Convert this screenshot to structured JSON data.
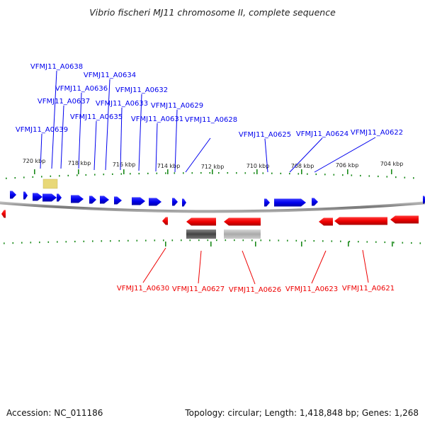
{
  "title": "Vibrio fischeri MJ11 chromosome II, complete sequence",
  "footer": {
    "accession": "Accession: NC_011186",
    "summary": "Topology: circular; Length: 1,418,848 bp; Genes: 1,268"
  },
  "colors": {
    "forward": "#0000ee",
    "reverse": "#ee0000",
    "backbone": "#8a8a8a",
    "tick": "#1a8a1a",
    "highlight": "#e8d878"
  },
  "scale": {
    "ticks": [
      {
        "label": "720 kbp",
        "kbp": 720
      },
      {
        "label": "718 kbp",
        "kbp": 718
      },
      {
        "label": "716 kbp",
        "kbp": 716
      },
      {
        "label": "714 kbp",
        "kbp": 714
      },
      {
        "label": "712 kbp",
        "kbp": 712
      },
      {
        "label": "710 kbp",
        "kbp": 710
      },
      {
        "label": "708 kbp",
        "kbp": 708
      },
      {
        "label": "706 kbp",
        "kbp": 706
      },
      {
        "label": "704 kbp",
        "kbp": 704
      }
    ]
  },
  "genes_forward": [
    {
      "locus": "VFMJ11_A0638"
    },
    {
      "locus": "VFMJ11_A0634"
    },
    {
      "locus": "VFMJ11_A0636"
    },
    {
      "locus": "VFMJ11_A0632"
    },
    {
      "locus": "VFMJ11_A0637"
    },
    {
      "locus": "VFMJ11_A0633"
    },
    {
      "locus": "VFMJ11_A0629"
    },
    {
      "locus": "VFMJ11_A0635"
    },
    {
      "locus": "VFMJ11_A0631"
    },
    {
      "locus": "VFMJ11_A0628"
    },
    {
      "locus": "VFMJ11_A0639"
    },
    {
      "locus": "VFMJ11_A0625"
    },
    {
      "locus": "VFMJ11_A0624"
    },
    {
      "locus": "VFMJ11_A0622"
    }
  ],
  "genes_reverse": [
    {
      "locus": "VFMJ11_A0630"
    },
    {
      "locus": "VFMJ11_A0627"
    },
    {
      "locus": "VFMJ11_A0626"
    },
    {
      "locus": "VFMJ11_A0623"
    },
    {
      "locus": "VFMJ11_A0621"
    }
  ]
}
